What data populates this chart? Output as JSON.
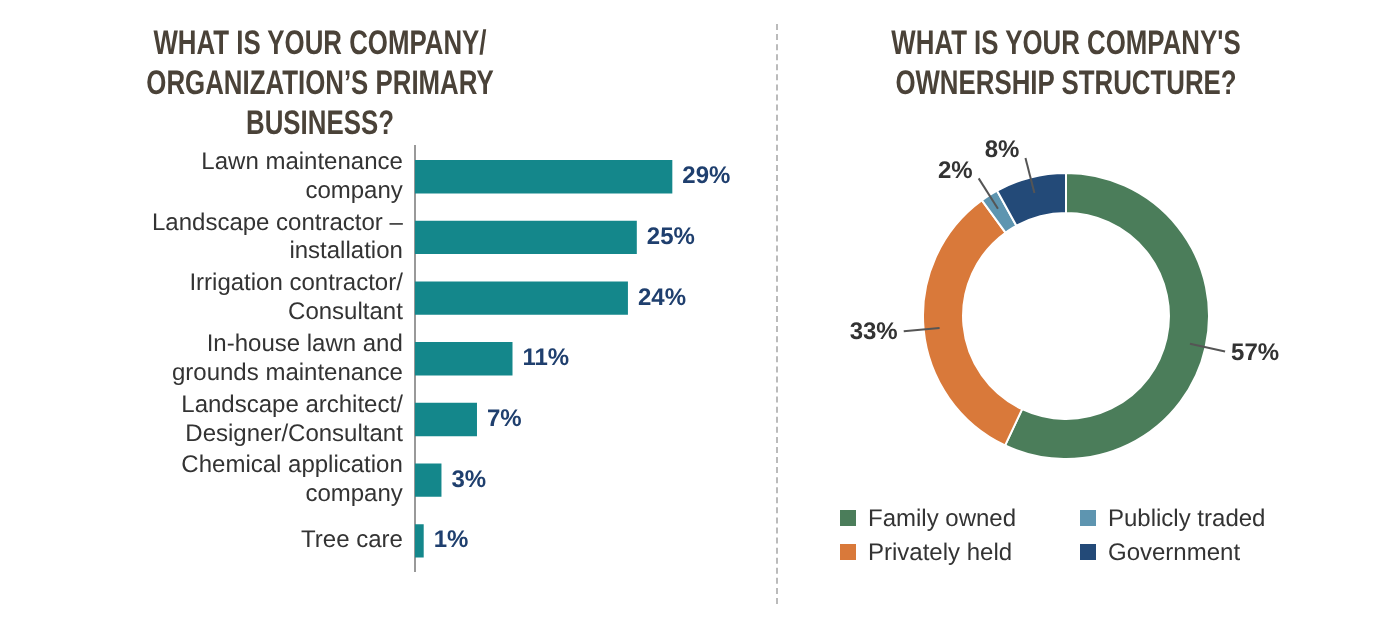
{
  "chart_data": [
    {
      "type": "bar",
      "orientation": "horizontal",
      "title": "WHAT IS YOUR COMPANY/ ORGANIZATION’S PRIMARY BUSINESS?",
      "categories": [
        "Lawn maintenance company",
        "Landscape contractor – installation",
        "Irrigation contractor/ Consultant",
        "In-house lawn and grounds maintenance",
        "Landscape architect/ Designer/Consultant",
        "Chemical application company",
        "Tree care"
      ],
      "values": [
        29,
        25,
        24,
        11,
        7,
        3,
        1
      ],
      "color": "#14878b",
      "value_labels": [
        "29%",
        "25%",
        "24%",
        "11%",
        "7%",
        "3%",
        "1%"
      ]
    },
    {
      "type": "donut",
      "title": "WHAT IS YOUR COMPANY'S OWNERSHIP STRUCTURE?",
      "categories": [
        "Family owned",
        "Privately held",
        "Publicly traded",
        "Government"
      ],
      "values": [
        57,
        33,
        2,
        8
      ],
      "colors": [
        "#4b7d5a",
        "#d9793a",
        "#5e95b0",
        "#234a78"
      ],
      "value_labels": [
        "57%",
        "33%",
        "2%",
        "8%"
      ],
      "legend": "bottom"
    }
  ]
}
